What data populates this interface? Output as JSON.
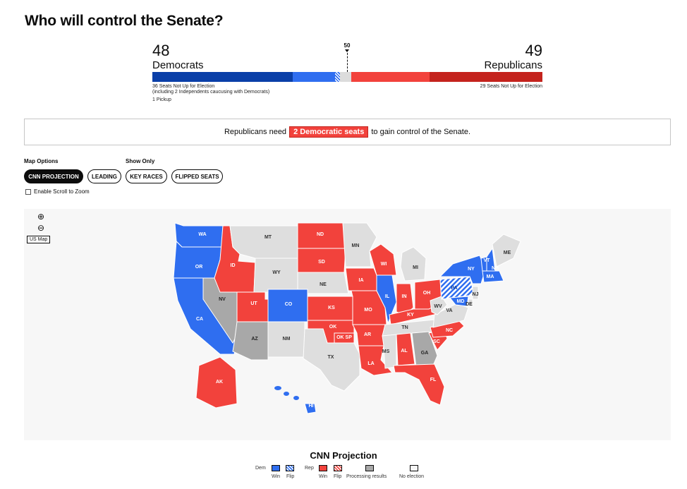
{
  "page": {
    "title": "Who will control the Senate?"
  },
  "tally": {
    "dem_count": "48",
    "dem_label": "Democrats",
    "rep_count": "49",
    "rep_label": "Republicans",
    "majority": "50",
    "dem_note": "36 Seats Not Up for Election\n(including 2 Independents caucusing with Democrats)",
    "dem_pickup": "1 Pickup",
    "rep_note": "29 Seats Not Up for Election"
  },
  "callout": {
    "before": "Republicans need",
    "highlight": "2 Democratic seats",
    "after": "to gain control of the Senate."
  },
  "options": {
    "map_options_label": "Map Options",
    "show_only_label": "Show Only",
    "buttons": [
      "CNN PROJECTION",
      "LEADING",
      "KEY RACES",
      "FLIPPED SEATS"
    ],
    "active": "CNN PROJECTION",
    "scroll_zoom": "Enable Scroll to Zoom"
  },
  "map": {
    "zoom_in": "⊕",
    "zoom_out": "⊖",
    "reset": "US Map",
    "colors": {
      "dem": "#2f6ef0",
      "rep": "#f2423c",
      "processing": "#a8a8a8",
      "none": "#dedede",
      "border": "#ffffff"
    },
    "states": [
      {
        "abbr": "WA",
        "status": "dem"
      },
      {
        "abbr": "OR",
        "status": "dem"
      },
      {
        "abbr": "CA",
        "status": "dem"
      },
      {
        "abbr": "NV",
        "status": "processing"
      },
      {
        "abbr": "ID",
        "status": "rep"
      },
      {
        "abbr": "MT",
        "status": "none"
      },
      {
        "abbr": "WY",
        "status": "none"
      },
      {
        "abbr": "UT",
        "status": "rep"
      },
      {
        "abbr": "CO",
        "status": "dem"
      },
      {
        "abbr": "AZ",
        "status": "processing"
      },
      {
        "abbr": "NM",
        "status": "none"
      },
      {
        "abbr": "ND",
        "status": "rep"
      },
      {
        "abbr": "SD",
        "status": "rep"
      },
      {
        "abbr": "NE",
        "status": "none"
      },
      {
        "abbr": "KS",
        "status": "rep"
      },
      {
        "abbr": "OK",
        "status": "rep"
      },
      {
        "abbr": "OK SP",
        "status": "rep"
      },
      {
        "abbr": "TX",
        "status": "none"
      },
      {
        "abbr": "MN",
        "status": "none"
      },
      {
        "abbr": "IA",
        "status": "rep"
      },
      {
        "abbr": "MO",
        "status": "rep"
      },
      {
        "abbr": "AR",
        "status": "rep"
      },
      {
        "abbr": "LA",
        "status": "rep"
      },
      {
        "abbr": "WI",
        "status": "rep"
      },
      {
        "abbr": "IL",
        "status": "dem"
      },
      {
        "abbr": "MI",
        "status": "none"
      },
      {
        "abbr": "IN",
        "status": "rep"
      },
      {
        "abbr": "OH",
        "status": "rep"
      },
      {
        "abbr": "KY",
        "status": "rep"
      },
      {
        "abbr": "TN",
        "status": "none"
      },
      {
        "abbr": "MS",
        "status": "none"
      },
      {
        "abbr": "AL",
        "status": "rep"
      },
      {
        "abbr": "GA",
        "status": "processing"
      },
      {
        "abbr": "FL",
        "status": "rep"
      },
      {
        "abbr": "SC",
        "status": "rep"
      },
      {
        "abbr": "NC",
        "status": "rep"
      },
      {
        "abbr": "VA",
        "status": "none"
      },
      {
        "abbr": "WV",
        "status": "none"
      },
      {
        "abbr": "PA",
        "status": "dem_flip"
      },
      {
        "abbr": "NY",
        "status": "dem"
      },
      {
        "abbr": "VT",
        "status": "dem"
      },
      {
        "abbr": "NH",
        "status": "dem"
      },
      {
        "abbr": "ME",
        "status": "none"
      },
      {
        "abbr": "MA",
        "status": "dem"
      },
      {
        "abbr": "NJ",
        "status": "none"
      },
      {
        "abbr": "MD",
        "status": "dem"
      },
      {
        "abbr": "DE",
        "status": "none"
      },
      {
        "abbr": "AK",
        "status": "rep"
      },
      {
        "abbr": "HI",
        "status": "dem"
      }
    ]
  },
  "legend": {
    "title": "CNN Projection",
    "dem": "Dem",
    "rep": "Rep",
    "win": "Win",
    "flip": "Flip",
    "processing": "Processing results",
    "no_election": "No election"
  }
}
